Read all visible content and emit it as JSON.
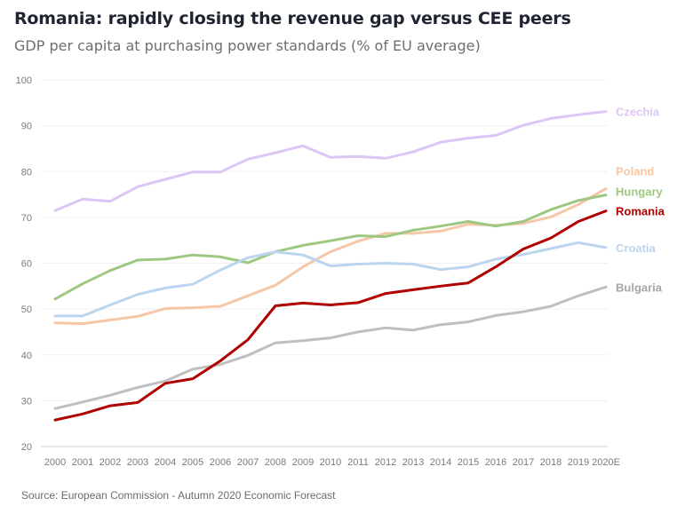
{
  "chart_data": {
    "type": "line",
    "title": "Romania: rapidly closing the revenue gap versus CEE peers",
    "subtitle": "GDP per capita at purchasing power standards (% of EU average)",
    "source": "Source: European Commission - Autumn 2020 Economic Forecast",
    "xlabel": "",
    "ylabel": "",
    "ylim": [
      20,
      100
    ],
    "yticks": [
      20,
      30,
      40,
      50,
      60,
      70,
      80,
      90,
      100
    ],
    "grid": true,
    "legend": "inline-right",
    "x": [
      "2000",
      "2001",
      "2002",
      "2003",
      "2004",
      "2005",
      "2006",
      "2007",
      "2008",
      "2009",
      "2010",
      "2011",
      "2012",
      "2013",
      "2014",
      "2015",
      "2016",
      "2017",
      "2018",
      "2019",
      "2020E"
    ],
    "series": [
      {
        "name": "Czechia",
        "color": "#dcc6f5",
        "values": [
          71.5,
          74,
          73.5,
          76.7,
          78.3,
          79.9,
          79.9,
          82.7,
          84.1,
          85.6,
          83.1,
          83.3,
          82.9,
          84.3,
          86.4,
          87.3,
          87.9,
          90.1,
          91.6,
          92.4,
          93.1
        ]
      },
      {
        "name": "Poland",
        "color": "#f5c7a6",
        "values": [
          47,
          46.8,
          47.6,
          48.4,
          50.1,
          50.3,
          50.6,
          52.9,
          55.2,
          59.2,
          62.5,
          64.8,
          66.5,
          66.5,
          67,
          68.5,
          68.3,
          68.7,
          70.1,
          72.8,
          76.3
        ]
      },
      {
        "name": "Hungary",
        "color": "#9dc882",
        "values": [
          52.2,
          55.5,
          58.4,
          60.7,
          60.9,
          61.8,
          61.4,
          60.1,
          62.5,
          63.9,
          64.9,
          66,
          65.8,
          67.2,
          68.1,
          69.1,
          68.1,
          69.1,
          71.7,
          73.7,
          74.9
        ]
      },
      {
        "name": "Romania",
        "color": "#b00000",
        "values": [
          25.8,
          27.1,
          28.9,
          29.6,
          33.8,
          34.8,
          38.7,
          43.3,
          50.7,
          51.3,
          50.9,
          51.4,
          53.4,
          54.2,
          55,
          55.7,
          59.2,
          63.1,
          65.5,
          69.1,
          71.4
        ]
      },
      {
        "name": "Croatia",
        "color": "#bcd5ee",
        "values": [
          48.5,
          48.5,
          50.9,
          53.2,
          54.6,
          55.4,
          58.5,
          61.2,
          62.5,
          61.8,
          59.4,
          59.8,
          60,
          59.8,
          58.6,
          59.2,
          60.9,
          61.9,
          63.2,
          64.5,
          63.4
        ]
      },
      {
        "name": "Bulgaria",
        "color": "#bfbfbf",
        "values": [
          28.3,
          29.7,
          31.2,
          32.9,
          34.3,
          36.9,
          37.9,
          39.9,
          42.6,
          43.1,
          43.7,
          45,
          45.9,
          45.4,
          46.6,
          47.2,
          48.6,
          49.4,
          50.6,
          52.9,
          54.8
        ]
      }
    ]
  }
}
